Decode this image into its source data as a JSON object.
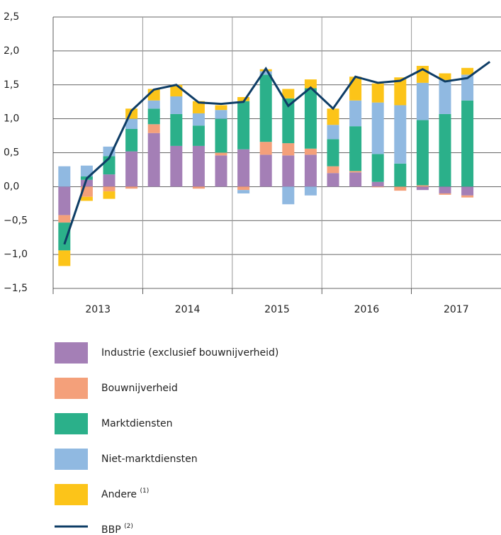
{
  "chart_data": {
    "type": "stacked_bar_line",
    "year_labels": [
      "2013",
      "2014",
      "2015",
      "2016",
      "2017"
    ],
    "quarters_per_year": 4,
    "ylim": [
      -1.5,
      2.5
    ],
    "yticks": [
      {
        "value": 2.5,
        "label": "2,5"
      },
      {
        "value": 2.0,
        "label": "2,0"
      },
      {
        "value": 1.5,
        "label": "1,5"
      },
      {
        "value": 1.0,
        "label": "1,0"
      },
      {
        "value": 0.5,
        "label": "0,5"
      },
      {
        "value": 0.0,
        "label": "0,0"
      },
      {
        "value": -0.5,
        "label": "−0,5"
      },
      {
        "value": -1.0,
        "label": "−1,0"
      },
      {
        "value": -1.5,
        "label": "−1,5"
      }
    ],
    "grid": true,
    "series": [
      {
        "name": "Industrie (exclusief bouwnijverheid)",
        "color": "#a47fb6",
        "values": [
          -0.42,
          0.1,
          0.18,
          0.52,
          0.79,
          0.6,
          0.6,
          0.46,
          0.55,
          0.47,
          0.46,
          0.47,
          0.2,
          0.21,
          0.07,
          0,
          -0.05,
          -0.1,
          -0.13,
          null
        ]
      },
      {
        "name": "Bouwnijverheid",
        "color": "#f4a07a",
        "values": [
          -0.11,
          -0.15,
          -0.07,
          -0.03,
          0.13,
          0,
          -0.03,
          0.04,
          -0.05,
          0.19,
          0.18,
          0.09,
          0.1,
          0.02,
          -0.01,
          -0.06,
          0.02,
          -0.02,
          -0.03,
          null
        ]
      },
      {
        "name": "Marktdiensten",
        "color": "#2bb08a",
        "values": [
          -0.41,
          0.05,
          0.27,
          0.33,
          0.23,
          0.47,
          0.3,
          0.5,
          0.71,
          0.99,
          0.66,
          0.89,
          0.4,
          0.66,
          0.41,
          0.34,
          0.96,
          1.07,
          1.27,
          null
        ]
      },
      {
        "name": "Niet-marktdiensten",
        "color": "#90b9e1",
        "values": [
          0.3,
          0.16,
          0.14,
          0.15,
          0.12,
          0.26,
          0.18,
          0.13,
          -0.05,
          0.05,
          -0.26,
          -0.13,
          0.21,
          0.38,
          0.76,
          0.86,
          0.55,
          0.5,
          0.38,
          null
        ]
      },
      {
        "name": "Andere",
        "note": "(1)",
        "color": "#fcc419",
        "values": [
          -0.23,
          -0.06,
          -0.11,
          0.15,
          0.17,
          0.17,
          0.18,
          0.07,
          0.06,
          0.03,
          0.14,
          0.13,
          0.24,
          0.35,
          0.28,
          0.41,
          0.25,
          0.1,
          0.1,
          null
        ]
      },
      {
        "name": "BBP",
        "note": "(2)",
        "color": "#0e3d66",
        "kind": "line",
        "values": [
          -0.85,
          0.12,
          0.42,
          1.12,
          1.43,
          1.5,
          1.24,
          1.22,
          1.25,
          1.74,
          1.19,
          1.46,
          1.15,
          1.62,
          1.53,
          1.56,
          1.73,
          1.55,
          1.6,
          1.84
        ]
      }
    ]
  }
}
